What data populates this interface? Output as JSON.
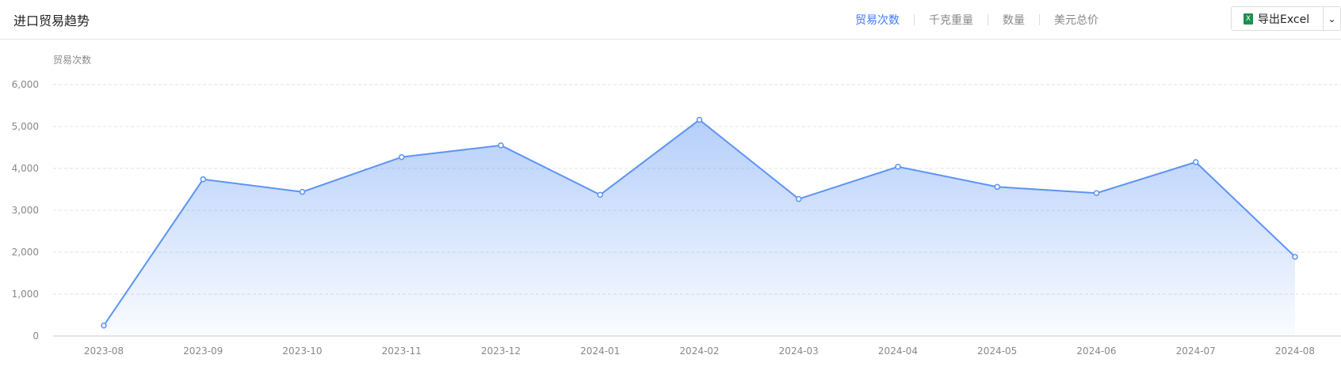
{
  "header": {
    "title": "进口贸易趋势",
    "tabs": [
      {
        "label": "贸易次数",
        "active": true
      },
      {
        "label": "千克重量"
      },
      {
        "label": "数量"
      },
      {
        "label": "美元总价"
      }
    ],
    "export_label": "导出Excel",
    "export_icon": "excel-icon",
    "dropdown_icon": "chevron-down-icon"
  },
  "chart_data": {
    "type": "area",
    "title": "",
    "ylabel": "贸易次数",
    "xlabel": "",
    "ylim": [
      0,
      6000
    ],
    "yticks": [
      "0",
      "1,000",
      "2,000",
      "3,000",
      "4,000",
      "5,000",
      "6,000"
    ],
    "grid": true,
    "color": "#5b93f5",
    "categories": [
      "2023-08",
      "2023-09",
      "2023-10",
      "2023-11",
      "2023-12",
      "2024-01",
      "2024-02",
      "2024-03",
      "2024-04",
      "2024-05",
      "2024-06",
      "2024-07",
      "2024-08"
    ],
    "values": [
      250,
      3740,
      3440,
      4270,
      4550,
      3370,
      5160,
      3270,
      4040,
      3560,
      3410,
      4150,
      1890
    ]
  }
}
